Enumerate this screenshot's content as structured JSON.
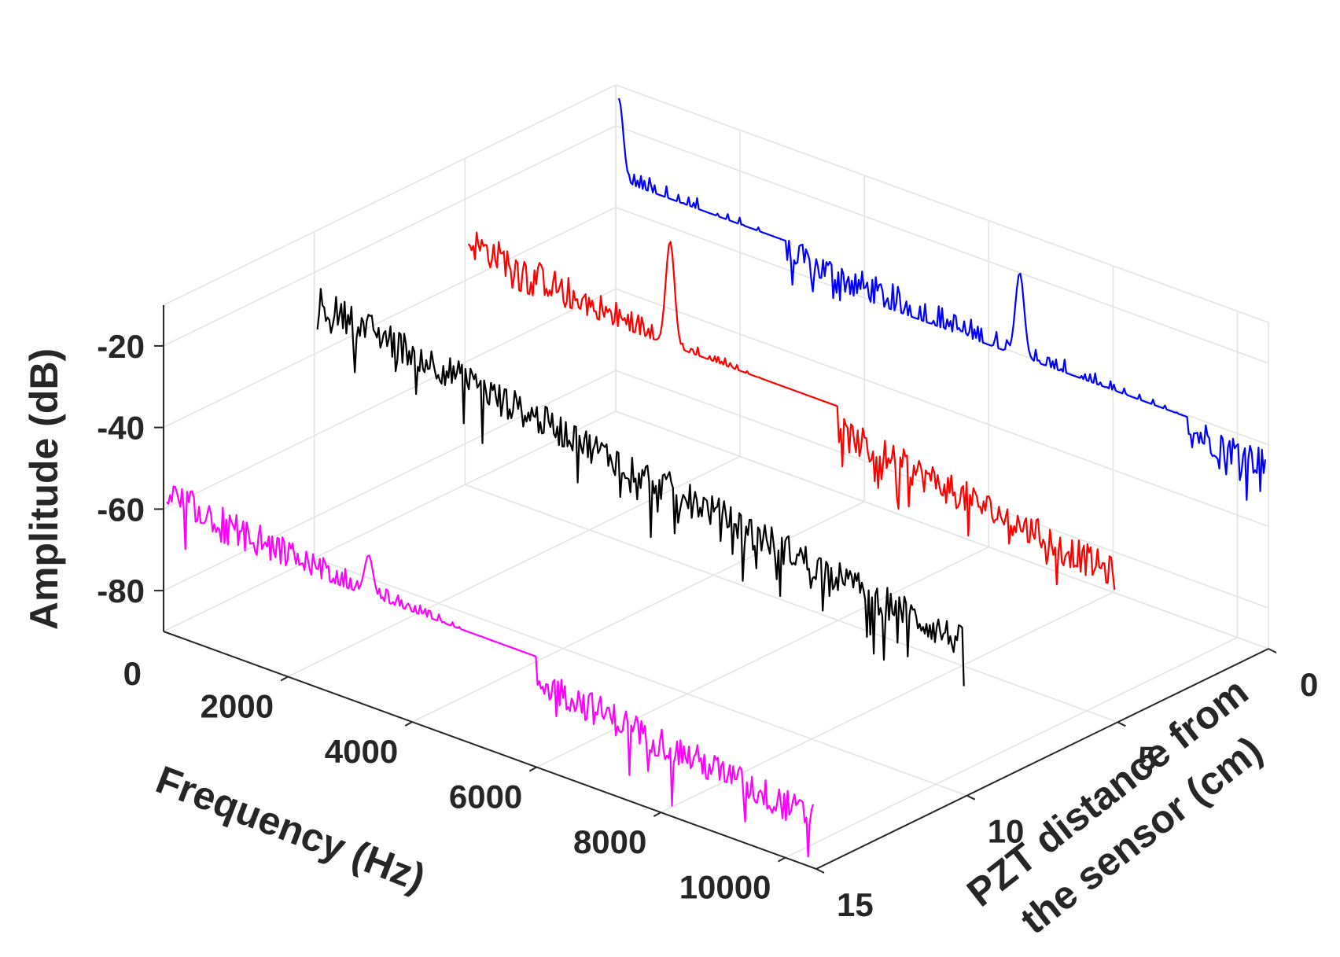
{
  "chart_data": {
    "type": "line",
    "view": "3d-waterfall",
    "xlabel": "Frequency (Hz)",
    "ylabel_lines": [
      "PZT distance from",
      "the sensor (cm)"
    ],
    "zlabel": "Amplitude (dB)",
    "xlim": [
      0,
      10500
    ],
    "ylim": [
      0,
      15
    ],
    "zlim": [
      -90,
      -10
    ],
    "x_ticks": [
      {
        "value": 2000,
        "label": "2000"
      },
      {
        "value": 4000,
        "label": "4000"
      },
      {
        "value": 6000,
        "label": "6000"
      },
      {
        "value": 8000,
        "label": "8000"
      },
      {
        "value": 10000,
        "label": "10000"
      }
    ],
    "x_origin_label": "0",
    "y_ticks": [
      {
        "value": 0,
        "label": "0"
      },
      {
        "value": 5,
        "label": "5"
      },
      {
        "value": 10,
        "label": "10"
      },
      {
        "value": 15,
        "label": "15"
      }
    ],
    "z_ticks": [
      {
        "value": -20,
        "label": "-20"
      },
      {
        "value": -40,
        "label": "-40"
      },
      {
        "value": -60,
        "label": "-60"
      },
      {
        "value": -80,
        "label": "-80"
      }
    ],
    "grid": true,
    "series": [
      {
        "distance": 0,
        "color": "#0000ff",
        "start_db": -33,
        "end_db": -45,
        "noise_db": 8,
        "peaks": [
          {
            "freq": 50,
            "db": -13
          },
          {
            "freq": 6500,
            "db": -20
          }
        ]
      },
      {
        "distance": 5,
        "color": "#ff0000",
        "start_db": -30,
        "end_db": -54,
        "noise_db": 8,
        "peaks": [
          {
            "freq": 3300,
            "db": -12
          }
        ]
      },
      {
        "distance": 10,
        "color": "#000000",
        "start_db": -27,
        "end_db": -53,
        "noise_db": 8,
        "peaks": [
          {
            "freq": 3300,
            "db": -38
          }
        ]
      },
      {
        "distance": 15,
        "color": "#ff00ff",
        "start_db": -56,
        "end_db": -78,
        "noise_db": 8,
        "peaks": [
          {
            "freq": 3300,
            "db": -53
          }
        ]
      }
    ]
  }
}
